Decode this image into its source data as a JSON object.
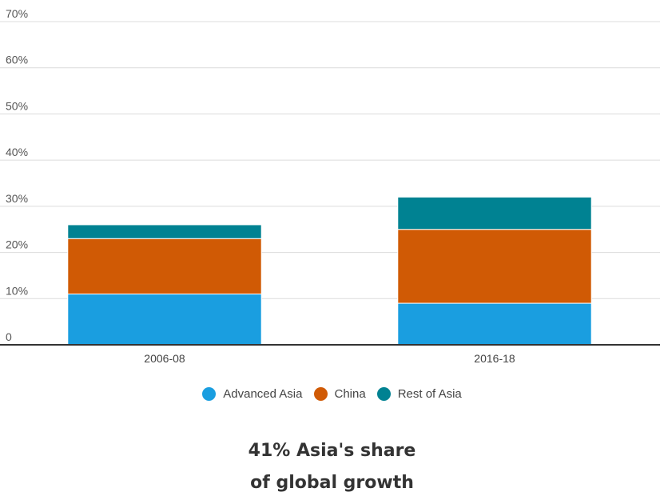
{
  "chart_data": {
    "type": "bar",
    "stacked": true,
    "categories": [
      "2006-08",
      "2016-18"
    ],
    "series": [
      {
        "name": "Advanced Asia",
        "values": [
          11,
          9
        ],
        "color": "#1a9ee0"
      },
      {
        "name": "China",
        "values": [
          12,
          16
        ],
        "color": "#d05a05"
      },
      {
        "name": "Rest of Asia",
        "values": [
          3,
          7
        ],
        "color": "#008292"
      }
    ],
    "ylim": [
      0,
      70
    ],
    "y_ticks": [
      0,
      10,
      20,
      30,
      40,
      50,
      60,
      70
    ],
    "y_tick_labels": [
      "0",
      "10%",
      "20%",
      "30%",
      "40%",
      "50%",
      "60%",
      "70%"
    ],
    "grid": true,
    "legend_position": "bottom-center"
  },
  "headline": {
    "line1": "41% Asia's share",
    "line2": "of global growth"
  }
}
